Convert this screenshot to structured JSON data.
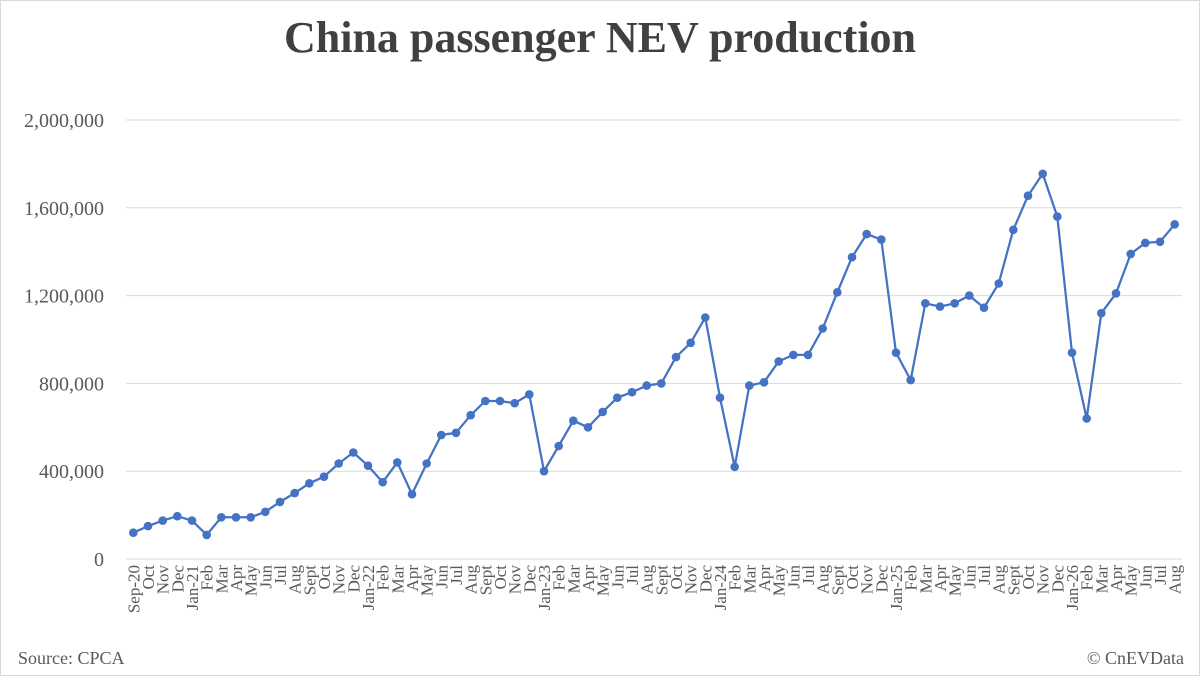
{
  "title": "China passenger NEV production",
  "source": "Source: CPCA",
  "credit": "© CnEVData",
  "colors": {
    "line": "#4472c4",
    "grid": "#d9d9d9",
    "text": "#595959"
  },
  "chart_data": {
    "type": "line",
    "title": "China passenger NEV production",
    "xlabel": "",
    "ylabel": "",
    "ylim": [
      0,
      2000000
    ],
    "yticks": [
      0,
      400000,
      800000,
      1200000,
      1600000,
      2000000
    ],
    "ytick_labels": [
      "0",
      "400,000",
      "800,000",
      "1,200,000",
      "1,600,000",
      "2,000,000"
    ],
    "grid": true,
    "legend": "none",
    "categories": [
      "Sep-20",
      "Oct",
      "Nov",
      "Dec",
      "Jan-21",
      "Feb",
      "Mar",
      "Apr",
      "May",
      "Jun",
      "Jul",
      "Aug",
      "Sept",
      "Oct",
      "Nov",
      "Dec",
      "Jan-22",
      "Feb",
      "Mar",
      "Apr",
      "May",
      "Jun",
      "Jul",
      "Aug",
      "Sept",
      "Oct",
      "Nov",
      "Dec",
      "Jan-23",
      "Feb",
      "Mar",
      "Apr",
      "May",
      "Jun",
      "Jul",
      "Aug",
      "Sept",
      "Oct",
      "Nov",
      "Dec",
      "Jan-24",
      "Feb",
      "Mar",
      "Apr",
      "May",
      "Jun",
      "Jul",
      "Aug",
      "Sept",
      "Oct",
      "Nov",
      "Dec",
      "Jan-25",
      "Feb",
      "Mar",
      "Apr",
      "May",
      "Jun",
      "Jul",
      "Aug",
      "Sept",
      "Oct",
      "Nov",
      "Dec",
      "Jan-26",
      "Feb",
      "Mar",
      "Apr",
      "May",
      "Jun",
      "Jul",
      "Aug"
    ],
    "series": [
      {
        "values": [
          120000,
          150000,
          175000,
          195000,
          175000,
          110000,
          190000,
          190000,
          190000,
          215000,
          260000,
          300000,
          345000,
          375000,
          435000,
          485000,
          425000,
          350000,
          440000,
          295000,
          435000,
          565000,
          575000,
          655000,
          720000,
          720000,
          710000,
          750000,
          400000,
          515000,
          630000,
          600000,
          670000,
          735000,
          760000,
          790000,
          800000,
          920000,
          985000,
          1100000,
          735000,
          420000,
          790000,
          805000,
          900000,
          930000,
          930000,
          1050000,
          1215000,
          1375000,
          1480000,
          1455000,
          940000,
          815000,
          1165000,
          1150000,
          1165000,
          1200000,
          1145000,
          1255000,
          1500000,
          1655000,
          1755000,
          1560000,
          940000,
          640000,
          1120000,
          1210000,
          1390000,
          1440000,
          1445000,
          1525000
        ]
      }
    ]
  }
}
